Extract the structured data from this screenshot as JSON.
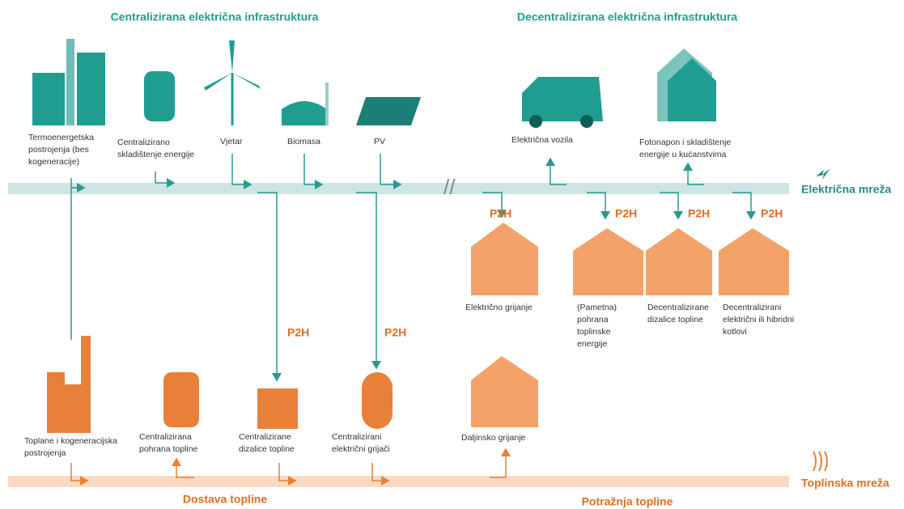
{
  "headers": {
    "central": "Centralizirana električna infrastruktura",
    "decentral": "Decentralizirana električna infrastruktura"
  },
  "electric_nodes": [
    {
      "lines": [
        "Termoenergetska",
        "postrojenja (bes",
        "kogeneracije)"
      ]
    },
    {
      "lines": [
        "Centralizirano",
        "skladištenje energije"
      ]
    },
    {
      "lines": [
        "Vjetar"
      ]
    },
    {
      "lines": [
        "Biomasa"
      ]
    },
    {
      "lines": [
        "PV"
      ]
    },
    {
      "lines": [
        "Električna vozila"
      ]
    },
    {
      "lines": [
        "Fotonapon i skladištenje",
        "energije u kućanstvima"
      ]
    }
  ],
  "demand_nodes": [
    {
      "lines": [
        "Električno grijanje"
      ]
    },
    {
      "lines": [
        "(Pametna)",
        "pohrana",
        "toplinske",
        "energije"
      ]
    },
    {
      "lines": [
        "Decentralizirane",
        "dizalice topline"
      ]
    },
    {
      "lines": [
        "Decentralizirani",
        "električni ili hibridni",
        "kotlovi"
      ]
    }
  ],
  "supply_nodes": [
    {
      "lines": [
        "Toplane i kogeneracijska",
        "postrojenja"
      ]
    },
    {
      "lines": [
        "Centralizirana",
        "pohrana topline"
      ]
    },
    {
      "lines": [
        "Centralizirane",
        "dizalice topline"
      ]
    },
    {
      "lines": [
        "Centralizirani",
        "električni grijači"
      ]
    },
    {
      "lines": [
        "Daljinsko grijanje"
      ]
    }
  ],
  "p2h": "P2H",
  "grids": {
    "electric": "Električna mreža",
    "heat": "Toplinska mreža"
  },
  "footer": {
    "supply": "Dostava topline",
    "demand": "Potražnja topline"
  }
}
